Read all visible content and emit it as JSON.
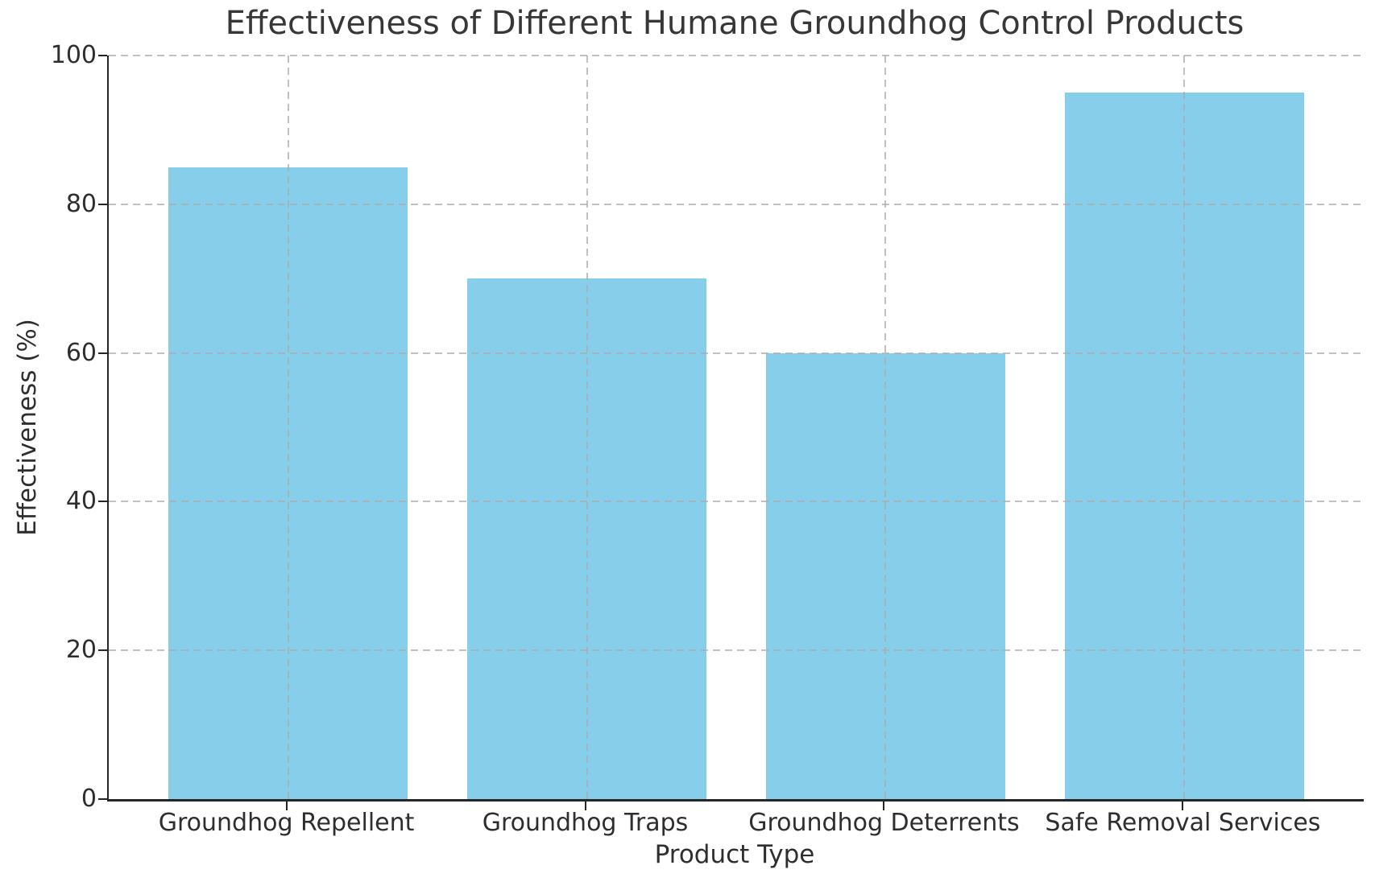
{
  "chart_data": {
    "type": "bar",
    "title": "Effectiveness of Different Humane Groundhog Control Products",
    "xlabel": "Product Type",
    "ylabel": "Effectiveness (%)",
    "categories": [
      "Groundhog Repellent",
      "Groundhog Traps",
      "Groundhog Deterrents",
      "Safe Removal Services"
    ],
    "values": [
      85,
      70,
      60,
      95
    ],
    "ylim": [
      0,
      100
    ],
    "yticks": [
      0,
      20,
      40,
      60,
      80,
      100
    ],
    "bar_color": "#87CEEB",
    "grid": "dashed gray gridlines on both axes, drawn over bars",
    "legend": "none"
  }
}
